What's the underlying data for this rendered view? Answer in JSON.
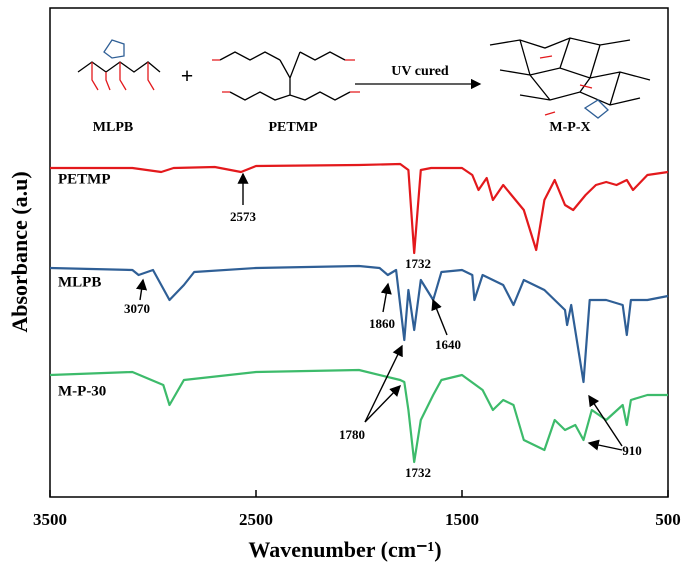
{
  "chart_data": {
    "type": "line",
    "xlabel": "Wavenumber (cm⁻¹)",
    "ylabel": "Absorbance (a.u)",
    "xlim": [
      3500,
      500
    ],
    "xticks": [
      3500,
      2500,
      1500,
      500
    ],
    "ylim": [
      0,
      489
    ],
    "series": [
      {
        "name": "PETMP",
        "color": "#e3191c",
        "x": [
          3500,
          3100,
          2960,
          2900,
          2700,
          2573,
          2500,
          2000,
          1800,
          1760,
          1732,
          1700,
          1650,
          1500,
          1450,
          1420,
          1380,
          1350,
          1300,
          1260,
          1200,
          1140,
          1100,
          1050,
          1000,
          960,
          900,
          850,
          800,
          750,
          700,
          670,
          600,
          500
        ],
        "values": [
          329,
          329,
          325,
          329,
          330,
          325,
          331,
          332,
          333,
          327,
          244,
          327,
          329,
          329,
          322,
          307,
          319,
          297,
          312,
          302,
          287,
          247,
          297,
          317,
          292,
          287,
          302,
          312,
          315,
          312,
          317,
          307,
          322,
          325
        ]
      },
      {
        "name": "MLPB",
        "color": "#2f5f96",
        "x": [
          3500,
          3100,
          3070,
          3000,
          2920,
          2850,
          2800,
          2500,
          2000,
          1900,
          1860,
          1820,
          1780,
          1760,
          1732,
          1700,
          1640,
          1600,
          1500,
          1450,
          1440,
          1400,
          1300,
          1250,
          1200,
          1100,
          1000,
          990,
          970,
          910,
          880,
          800,
          720,
          700,
          680,
          600,
          500
        ],
        "values": [
          229,
          227,
          222,
          227,
          197,
          212,
          225,
          229,
          231,
          229,
          222,
          227,
          157,
          207,
          167,
          217,
          197,
          225,
          227,
          222,
          197,
          222,
          212,
          192,
          217,
          207,
          187,
          172,
          192,
          115,
          197,
          197,
          192,
          162,
          197,
          197,
          201
        ]
      },
      {
        "name": "M-P-30",
        "color": "#3dbb6b",
        "x": [
          3500,
          3100,
          2950,
          2920,
          2850,
          2500,
          2000,
          1800,
          1780,
          1760,
          1732,
          1700,
          1640,
          1600,
          1500,
          1400,
          1350,
          1300,
          1250,
          1200,
          1150,
          1100,
          1050,
          1000,
          950,
          910,
          870,
          800,
          720,
          700,
          680,
          600,
          500
        ],
        "values": [
          122,
          125,
          112,
          92,
          117,
          125,
          127,
          117,
          115,
          87,
          35,
          77,
          102,
          117,
          122,
          107,
          87,
          97,
          92,
          57,
          52,
          47,
          77,
          67,
          72,
          57,
          87,
          77,
          92,
          72,
          97,
          102,
          102
        ]
      }
    ],
    "annotations": [
      "2573",
      "1732",
      "3070",
      "1860",
      "1640",
      "1780",
      "1732",
      "910"
    ],
    "scheme": {
      "labels": [
        "MLPB",
        "PETMP",
        "UV cured",
        "M-P-X"
      ]
    }
  }
}
